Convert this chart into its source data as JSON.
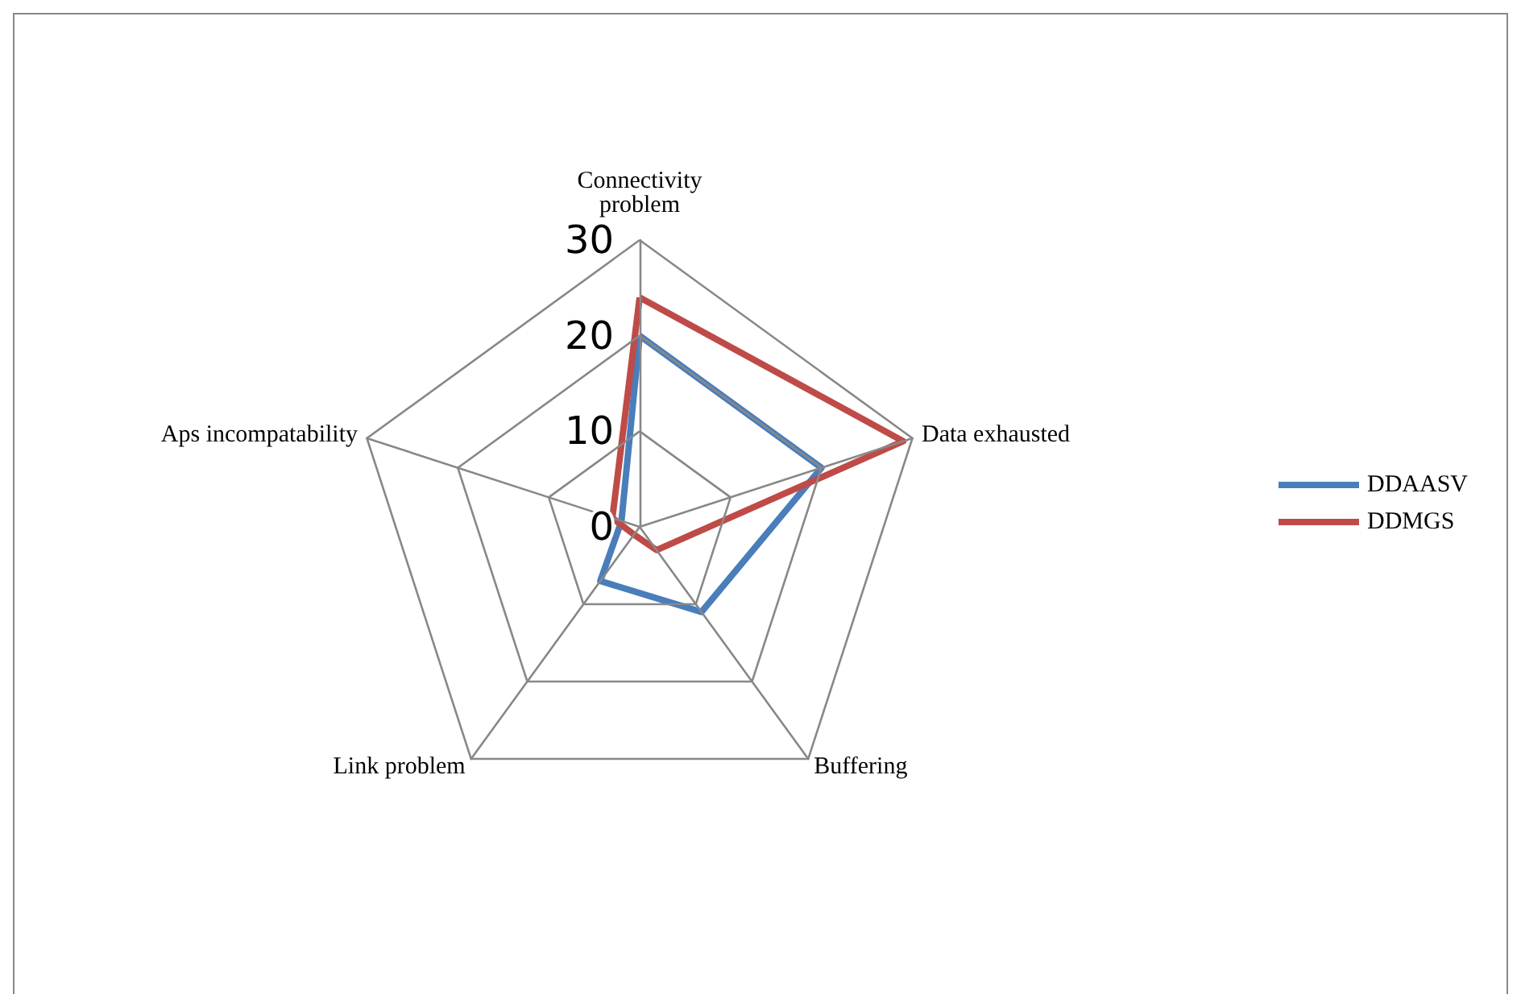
{
  "chart_data": {
    "type": "radar",
    "categories": [
      "Connectivity\nproblem",
      "Data exhausted",
      "Buffering",
      "Link problem",
      "Aps incompatability"
    ],
    "series": [
      {
        "name": "DDAASV",
        "color": "#4a7ebb",
        "values": [
          20,
          20,
          11,
          7,
          2
        ]
      },
      {
        "name": "DDMGS",
        "color": "#be4b48",
        "values": [
          24,
          29,
          3,
          1,
          3
        ]
      }
    ],
    "ylim": [
      0,
      30
    ],
    "yticks": [
      0,
      10,
      20,
      30
    ],
    "legend": "right",
    "marker": "none"
  }
}
